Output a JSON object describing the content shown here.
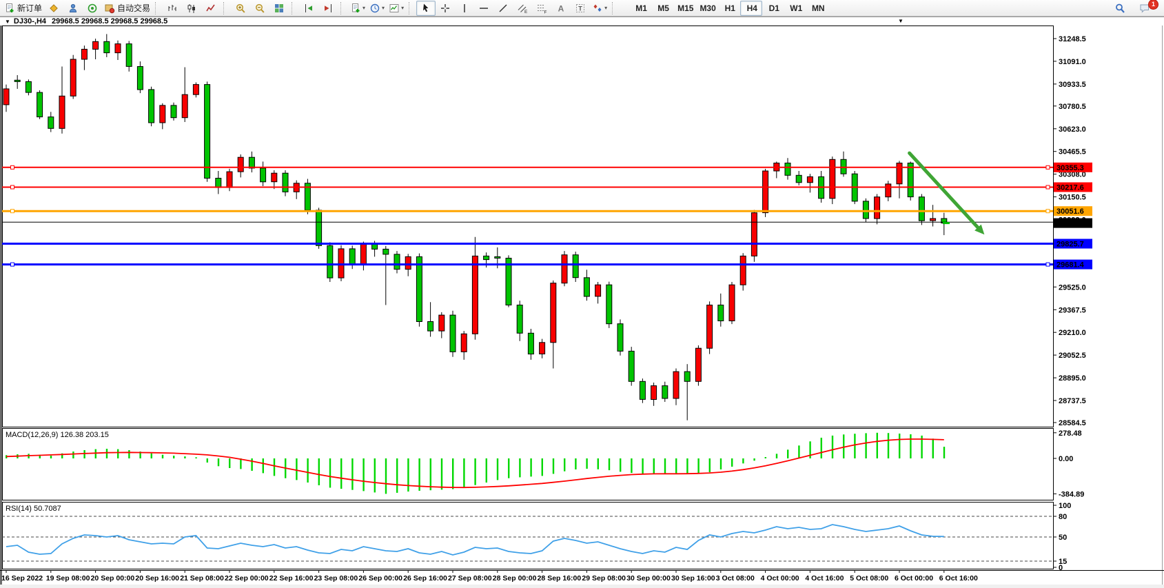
{
  "toolbar": {
    "groups": [
      {
        "name": "trade",
        "items": [
          {
            "name": "new-order-button",
            "icon": "doc-plus",
            "label": "新订单"
          },
          {
            "name": "market-watch-button",
            "icon": "gold-diamond"
          },
          {
            "name": "navigator-button",
            "icon": "person-blue"
          },
          {
            "name": "signals-button",
            "icon": "sonar-green"
          },
          {
            "name": "autotrading-button",
            "icon": "autotrade",
            "label": "自动交易"
          }
        ]
      },
      {
        "name": "chart-type",
        "items": [
          {
            "name": "bar-chart-button",
            "icon": "bars"
          },
          {
            "name": "candlestick-chart-button",
            "icon": "candles"
          },
          {
            "name": "line-chart-button",
            "icon": "zigzag"
          }
        ]
      },
      {
        "name": "zoom",
        "items": [
          {
            "name": "zoom-in-button",
            "icon": "magnifier-plus"
          },
          {
            "name": "zoom-out-button",
            "icon": "magnifier-minus"
          },
          {
            "name": "tile-windows-button",
            "icon": "tiles"
          }
        ]
      },
      {
        "name": "scroll",
        "items": [
          {
            "name": "auto-scroll-button",
            "icon": "autoscroll"
          },
          {
            "name": "chart-shift-button",
            "icon": "chartshift"
          }
        ]
      },
      {
        "name": "windows",
        "items": [
          {
            "name": "new-chart-button",
            "icon": "doc-plus",
            "dropdown": true
          },
          {
            "name": "period-button",
            "icon": "clock",
            "dropdown": true
          },
          {
            "name": "template-button",
            "icon": "template",
            "dropdown": true
          }
        ]
      },
      {
        "name": "objects",
        "items": [
          {
            "name": "cursor-button",
            "icon": "cursor",
            "selected": true
          },
          {
            "name": "crosshair-button",
            "icon": "crosshair"
          },
          {
            "name": "vertical-line-button",
            "icon": "vline"
          },
          {
            "name": "horizontal-line-button",
            "icon": "hline"
          },
          {
            "name": "trendline-button",
            "icon": "trendline"
          },
          {
            "name": "equidistant-channel-button",
            "icon": "channel"
          },
          {
            "name": "fibonacci-button",
            "icon": "fibo"
          },
          {
            "name": "text-button",
            "icon": "textA"
          },
          {
            "name": "text-label-button",
            "icon": "labelT"
          },
          {
            "name": "arrows-button",
            "icon": "arrows",
            "dropdown": true
          }
        ]
      },
      {
        "name": "timeframes",
        "items": [
          {
            "name": "tf-m1",
            "label": "M1"
          },
          {
            "name": "tf-m5",
            "label": "M5"
          },
          {
            "name": "tf-m15",
            "label": "M15"
          },
          {
            "name": "tf-m30",
            "label": "M30"
          },
          {
            "name": "tf-h1",
            "label": "H1"
          },
          {
            "name": "tf-h4",
            "label": "H4",
            "selected": true
          },
          {
            "name": "tf-d1",
            "label": "D1"
          },
          {
            "name": "tf-w1",
            "label": "W1"
          },
          {
            "name": "tf-mn",
            "label": "MN"
          }
        ]
      }
    ],
    "right_items": [
      {
        "name": "search-button",
        "icon": "search"
      },
      {
        "name": "chat-button",
        "icon": "chat",
        "badge": "1"
      }
    ]
  },
  "chart": {
    "collapse_marker": "▼",
    "title": "DJ30-,H4",
    "quotes": "29968.5 29968.5 29968.5 29968.5",
    "corner_marker": "▼"
  },
  "chart_data": {
    "type": "candlestick+indicators",
    "symbol": "DJ30-",
    "period": "H4",
    "colors": {
      "up": "#F80000",
      "down": "#00C400",
      "wick": "#000000",
      "macd_hist": "#00D800",
      "macd_signal": "#FF0000",
      "rsi_line": "#3FA0E8",
      "arrow": "#3FA535",
      "line_red": "#FF0000",
      "line_orange": "#FFA500",
      "line_blue": "#0000FF",
      "line_black": "#000000",
      "current_badge": "#000000"
    },
    "price_axis": {
      "visible_range": [
        28556,
        31340
      ],
      "ticks": [
        "31248.5",
        "31091.0",
        "30933.5",
        "30780.5",
        "30623.0",
        "30465.5",
        "30308.0",
        "30150.5",
        "29993.0",
        "29835.5",
        "29678.0",
        "29525.0",
        "29367.5",
        "29210.0",
        "29052.5",
        "28895.0",
        "28737.5",
        "28584.5"
      ]
    },
    "time_labels": [
      [
        0,
        "16 Sep 2022"
      ],
      [
        4,
        "19 Sep 08:00"
      ],
      [
        8,
        "20 Sep 00:00"
      ],
      [
        12,
        "20 Sep 16:00"
      ],
      [
        16,
        "21 Sep 08:00"
      ],
      [
        20,
        "22 Sep 00:00"
      ],
      [
        24,
        "22 Sep 16:00"
      ],
      [
        28,
        "23 Sep 08:00"
      ],
      [
        32,
        "26 Sep 00:00"
      ],
      [
        36,
        "26 Sep 16:00"
      ],
      [
        40,
        "27 Sep 08:00"
      ],
      [
        44,
        "28 Sep 00:00"
      ],
      [
        48,
        "28 Sep 16:00"
      ],
      [
        52,
        "29 Sep 08:00"
      ],
      [
        56,
        "30 Sep 00:00"
      ],
      [
        60,
        "30 Sep 16:00"
      ],
      [
        64,
        "3 Oct 08:00"
      ],
      [
        68,
        "4 Oct 00:00"
      ],
      [
        72,
        "4 Oct 16:00"
      ],
      [
        76,
        "5 Oct 08:00"
      ],
      [
        80,
        "6 Oct 00:00"
      ],
      [
        84,
        "6 Oct 16:00"
      ]
    ],
    "candles": [
      [
        30790,
        30930,
        30740,
        30900
      ],
      [
        30960,
        30995,
        30900,
        30950
      ],
      [
        30950,
        30965,
        30855,
        30875
      ],
      [
        30875,
        30890,
        30690,
        30705
      ],
      [
        30705,
        30740,
        30600,
        30625
      ],
      [
        30625,
        31055,
        30590,
        30850
      ],
      [
        30850,
        31135,
        30830,
        31105
      ],
      [
        31105,
        31200,
        31030,
        31175
      ],
      [
        31175,
        31248,
        31105,
        31228
      ],
      [
        31228,
        31280,
        31120,
        31150
      ],
      [
        31150,
        31235,
        31100,
        31212
      ],
      [
        31212,
        31232,
        31020,
        31055
      ],
      [
        31055,
        31090,
        30870,
        30895
      ],
      [
        30895,
        30915,
        30640,
        30665
      ],
      [
        30665,
        30800,
        30620,
        30785
      ],
      [
        30785,
        30805,
        30680,
        30700
      ],
      [
        30700,
        31050,
        30670,
        30860
      ],
      [
        30860,
        30945,
        30840,
        30930
      ],
      [
        30930,
        30950,
        30255,
        30280
      ],
      [
        30280,
        30330,
        30170,
        30215
      ],
      [
        30215,
        30345,
        30190,
        30325
      ],
      [
        30325,
        30445,
        30285,
        30425
      ],
      [
        30425,
        30465,
        30320,
        30350
      ],
      [
        30350,
        30395,
        30225,
        30255
      ],
      [
        30255,
        30335,
        30205,
        30315
      ],
      [
        30315,
        30335,
        30155,
        30185
      ],
      [
        30185,
        30265,
        30135,
        30245
      ],
      [
        30245,
        30275,
        30030,
        30058
      ],
      [
        30058,
        30075,
        29790,
        29812
      ],
      [
        29812,
        29835,
        29560,
        29588
      ],
      [
        29588,
        29815,
        29565,
        29790
      ],
      [
        29790,
        29812,
        29650,
        29678
      ],
      [
        29678,
        29840,
        29640,
        29822
      ],
      [
        29822,
        29845,
        29735,
        29788
      ],
      [
        29788,
        29810,
        29400,
        29752
      ],
      [
        29752,
        29775,
        29620,
        29648
      ],
      [
        29648,
        29755,
        29600,
        29735
      ],
      [
        29735,
        29758,
        29250,
        29285
      ],
      [
        29285,
        29420,
        29180,
        29220
      ],
      [
        29220,
        29350,
        29170,
        29330
      ],
      [
        29330,
        29360,
        29040,
        29075
      ],
      [
        29075,
        29220,
        29020,
        29200
      ],
      [
        29200,
        29872,
        29160,
        29740
      ],
      [
        29740,
        29765,
        29660,
        29715
      ],
      [
        29735,
        29800,
        29655,
        29725
      ],
      [
        29725,
        29745,
        29385,
        29400
      ],
      [
        29400,
        29430,
        29150,
        29205
      ],
      [
        29205,
        29235,
        29020,
        29060
      ],
      [
        29060,
        29165,
        29030,
        29140
      ],
      [
        29140,
        29570,
        28960,
        29552
      ],
      [
        29552,
        29775,
        29530,
        29748
      ],
      [
        29748,
        29770,
        29560,
        29590
      ],
      [
        29590,
        29645,
        29430,
        29460
      ],
      [
        29460,
        29560,
        29410,
        29540
      ],
      [
        29540,
        29562,
        29240,
        29270
      ],
      [
        29270,
        29300,
        29050,
        29080
      ],
      [
        29080,
        29110,
        28840,
        28870
      ],
      [
        28870,
        28890,
        28720,
        28745
      ],
      [
        28745,
        28862,
        28700,
        28840
      ],
      [
        28840,
        28868,
        28728,
        28752
      ],
      [
        28752,
        28960,
        28705,
        28938
      ],
      [
        28938,
        28990,
        28600,
        28870
      ],
      [
        28870,
        29120,
        28840,
        29100
      ],
      [
        29100,
        29425,
        29060,
        29400
      ],
      [
        29400,
        29480,
        29250,
        29290
      ],
      [
        29290,
        29560,
        29268,
        29540
      ],
      [
        29540,
        29760,
        29500,
        29740
      ],
      [
        29740,
        30060,
        29700,
        30040
      ],
      [
        30040,
        30345,
        30010,
        30330
      ],
      [
        30330,
        30395,
        30280,
        30385
      ],
      [
        30385,
        30420,
        30270,
        30300
      ],
      [
        30300,
        30330,
        30230,
        30250
      ],
      [
        30250,
        30310,
        30180,
        30290
      ],
      [
        30290,
        30330,
        30110,
        30140
      ],
      [
        30140,
        30430,
        30100,
        30410
      ],
      [
        30410,
        30465,
        30290,
        30310
      ],
      [
        30310,
        30330,
        30100,
        30120
      ],
      [
        30120,
        30140,
        29975,
        30000
      ],
      [
        30000,
        30170,
        29960,
        30150
      ],
      [
        30150,
        30262,
        30120,
        30240
      ],
      [
        30240,
        30400,
        30140,
        30385
      ],
      [
        30385,
        30395,
        30125,
        30150
      ],
      [
        30150,
        30170,
        29955,
        29985
      ],
      [
        29985,
        30095,
        29945,
        30000
      ],
      [
        30000,
        30040,
        29885,
        29968.5
      ]
    ],
    "hlines": [
      {
        "price": 30355.3,
        "label": "30355.3",
        "color": "#FF0000",
        "width": 2,
        "handles": true,
        "badge": true
      },
      {
        "price": 30217.6,
        "label": "30217.6",
        "color": "#FF0000",
        "width": 2,
        "handles": true,
        "badge": true
      },
      {
        "price": 30051.6,
        "label": "30051.6",
        "color": "#FFA500",
        "width": 3,
        "handles": true,
        "badge": true
      },
      {
        "price": 29975.0,
        "label": "",
        "color": "#000000",
        "width": 1,
        "handles": false,
        "badge": false
      },
      {
        "price": 29825.7,
        "label": "29825.7",
        "color": "#0000FF",
        "width": 3,
        "handles": false,
        "badge": true
      },
      {
        "price": 29681.4,
        "label": "29681.4",
        "color": "#0000FF",
        "width": 3,
        "handles": true,
        "badge": true
      }
    ],
    "current_price": {
      "value": 29968.5,
      "label": "29968.5"
    },
    "arrow": {
      "bar1": 80.9,
      "price1": 30454,
      "bar2": 87.2,
      "price2": 29924
    },
    "macd": {
      "label": "MACD(12,26,9)",
      "values_text": "126.38 203.15",
      "axis": [
        "278.48",
        "0.00",
        "-384.89"
      ],
      "hist": [
        35,
        45,
        50,
        40,
        30,
        55,
        75,
        90,
        100,
        105,
        100,
        90,
        75,
        55,
        40,
        30,
        22,
        12,
        -45,
        -85,
        -105,
        -115,
        -135,
        -160,
        -190,
        -215,
        -235,
        -262,
        -292,
        -318,
        -330,
        -342,
        -355,
        -370,
        -385,
        -374,
        -360,
        -352,
        -346,
        -340,
        -334,
        -320,
        -290,
        -262,
        -235,
        -215,
        -205,
        -198,
        -190,
        -168,
        -140,
        -120,
        -112,
        -118,
        -128,
        -145,
        -158,
        -166,
        -170,
        -168,
        -165,
        -162,
        -158,
        -150,
        -120,
        -90,
        -55,
        -25,
        15,
        50,
        95,
        140,
        185,
        225,
        248,
        260,
        268,
        274,
        278.48,
        276,
        270,
        262,
        248,
        215,
        126.38
      ],
      "signal": [
        20,
        25,
        30,
        34,
        38,
        43,
        48,
        53,
        58,
        62,
        64,
        65,
        64,
        62,
        60,
        57,
        52,
        46,
        38,
        26,
        12,
        -8,
        -30,
        -55,
        -80,
        -105,
        -128,
        -152,
        -175,
        -196,
        -215,
        -232,
        -248,
        -262,
        -275,
        -286,
        -295,
        -302,
        -308,
        -312,
        -315,
        -316,
        -314,
        -310,
        -305,
        -298,
        -290,
        -281,
        -272,
        -260,
        -247,
        -233,
        -219,
        -206,
        -194,
        -184,
        -176,
        -171,
        -168,
        -167,
        -167,
        -166,
        -163,
        -158,
        -150,
        -138,
        -122,
        -103,
        -80,
        -54,
        -26,
        4,
        34,
        64,
        94,
        122,
        147,
        168,
        185,
        198,
        206,
        210,
        210,
        207,
        203.15
      ]
    },
    "rsi": {
      "label": "RSI(14)",
      "value_text": "50.7087",
      "axis": [
        "100",
        "80",
        "50",
        "15",
        "0"
      ],
      "dashed_levels": [
        80,
        50,
        15
      ],
      "values": [
        36,
        38,
        28,
        25,
        26,
        40,
        48,
        53,
        52,
        50,
        52,
        46,
        43,
        40,
        41,
        40,
        50,
        52,
        34,
        33,
        37,
        41,
        38,
        36,
        39,
        34,
        36,
        31,
        27,
        26,
        32,
        30,
        36,
        33,
        30,
        29,
        33,
        27,
        25,
        29,
        24,
        28,
        35,
        33,
        34,
        29,
        27,
        26,
        30,
        44,
        48,
        45,
        41,
        43,
        38,
        33,
        29,
        26,
        30,
        28,
        35,
        32,
        45,
        53,
        50,
        55,
        58,
        56,
        60,
        65,
        62,
        64,
        61,
        62,
        68,
        65,
        61,
        58,
        60,
        62,
        66,
        59,
        53,
        51,
        50.7
      ]
    }
  }
}
